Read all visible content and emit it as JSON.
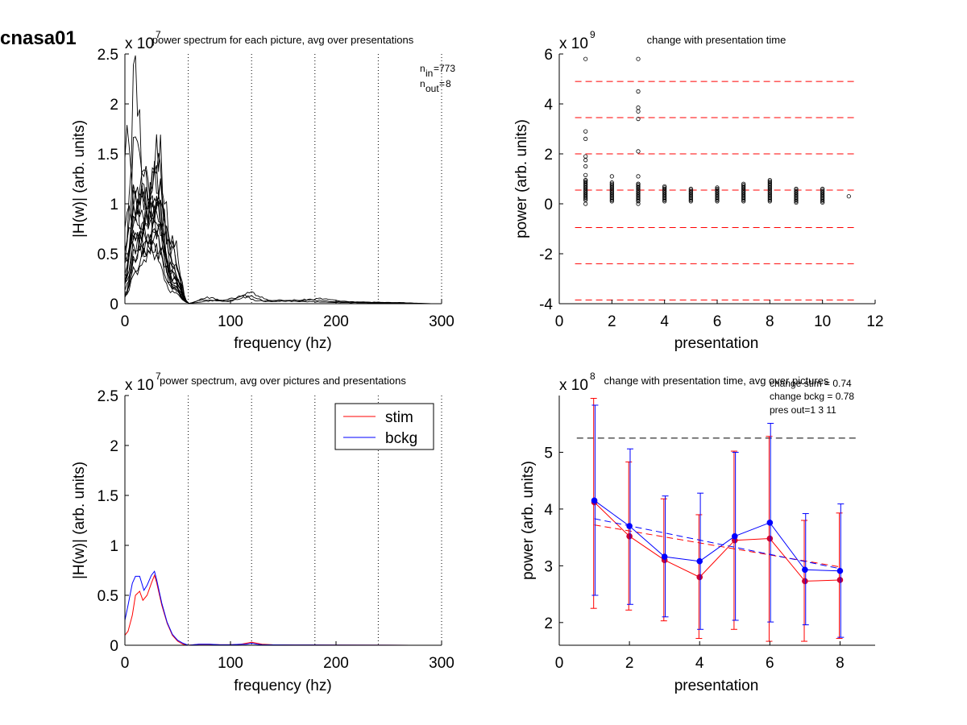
{
  "figure": {
    "label": "cnasa01"
  },
  "chart_data": [
    {
      "id": "p1",
      "type": "line",
      "title": "power spectrum for each picture, avg over presentations",
      "xlabel": "frequency (hz)",
      "ylabel": "|H(w)| (arb. units)",
      "xlim": [
        0,
        300
      ],
      "ylim": [
        0,
        25000000
      ],
      "exponent": "7",
      "xticks": [
        "0",
        "100",
        "200",
        "300"
      ],
      "yticks": [
        "0",
        "0.5",
        "1",
        "1.5",
        "2",
        "2.5"
      ],
      "vlines": [
        60,
        120,
        180,
        240,
        300
      ],
      "annotations": {
        "n_in": "773",
        "n_out": "8"
      },
      "traces": [
        {
          "peaks": [
            [
              0,
              17.6
            ],
            [
              10,
              7.8
            ],
            [
              20,
              5.5
            ],
            [
              30,
              6.4
            ],
            [
              45,
              1.8
            ],
            [
              60,
              0.1
            ]
          ]
        },
        {
          "peaks": [
            [
              0,
              4.8
            ],
            [
              10,
              22.6
            ],
            [
              20,
              8.9
            ],
            [
              30,
              9.8
            ],
            [
              45,
              2.5
            ],
            [
              60,
              0.1
            ]
          ]
        },
        {
          "peaks": [
            [
              0,
              6.4
            ],
            [
              10,
              15.5
            ],
            [
              20,
              11.7
            ],
            [
              30,
              7.3
            ],
            [
              45,
              1.7
            ],
            [
              60,
              0.1
            ]
          ]
        },
        {
          "peaks": [
            [
              0,
              8.5
            ],
            [
              10,
              10.2
            ],
            [
              20,
              12.3
            ],
            [
              30,
              11.9
            ],
            [
              45,
              3.8
            ],
            [
              60,
              0.1
            ]
          ]
        },
        {
          "peaks": [
            [
              0,
              2.3
            ],
            [
              10,
              4.1
            ],
            [
              20,
              8.3
            ],
            [
              30,
              16.0
            ],
            [
              45,
              6.6
            ],
            [
              60,
              0.1
            ]
          ]
        },
        {
          "peaks": [
            [
              0,
              1.4
            ],
            [
              10,
              5.2
            ],
            [
              20,
              9.2
            ],
            [
              30,
              13.7
            ],
            [
              45,
              3.2
            ],
            [
              60,
              0.1
            ]
          ]
        },
        {
          "peaks": [
            [
              0,
              3.1
            ],
            [
              10,
              8.4
            ],
            [
              20,
              10.9
            ],
            [
              30,
              7.6
            ],
            [
              45,
              2.9
            ],
            [
              60,
              0.1
            ]
          ]
        },
        {
          "peaks": [
            [
              0,
              0.8
            ],
            [
              10,
              6.7
            ],
            [
              20,
              7.4
            ],
            [
              30,
              9.9
            ],
            [
              45,
              5.4
            ],
            [
              60,
              0.1
            ]
          ]
        },
        {
          "peaks": [
            [
              0,
              5.2
            ],
            [
              10,
              9.3
            ],
            [
              20,
              6.1
            ],
            [
              30,
              8.2
            ],
            [
              45,
              2.2
            ],
            [
              60,
              0.1
            ]
          ]
        },
        {
          "peaks": [
            [
              0,
              2.0
            ],
            [
              10,
              11.8
            ],
            [
              20,
              9.6
            ],
            [
              30,
              12.6
            ],
            [
              45,
              4.5
            ],
            [
              60,
              0.1
            ]
          ]
        },
        {
          "peaks": [
            [
              0,
              1.1
            ],
            [
              10,
              3.6
            ],
            [
              20,
              6.3
            ],
            [
              30,
              5.4
            ],
            [
              45,
              1.5
            ],
            [
              60,
              0.1
            ]
          ]
        },
        {
          "peaks": [
            [
              0,
              3.8
            ],
            [
              10,
              7.1
            ],
            [
              20,
              4.8
            ],
            [
              30,
              6.9
            ],
            [
              45,
              3.6
            ],
            [
              60,
              0.1
            ]
          ]
        },
        {
          "peaks": [
            [
              0,
              0.6
            ],
            [
              10,
              4.8
            ],
            [
              20,
              8.8
            ],
            [
              30,
              10.5
            ],
            [
              45,
              2.1
            ],
            [
              60,
              0.1
            ]
          ]
        },
        {
          "peaks": [
            [
              0,
              2.7
            ],
            [
              10,
              5.9
            ],
            [
              20,
              7.0
            ],
            [
              30,
              4.3
            ],
            [
              45,
              1.2
            ],
            [
              60,
              0.1
            ]
          ]
        },
        {
          "peaks": [
            [
              0,
              1.7
            ],
            [
              10,
              9.7
            ],
            [
              20,
              10.1
            ],
            [
              30,
              8.8
            ],
            [
              45,
              3.0
            ],
            [
              60,
              0.1
            ]
          ]
        },
        {
          "peaks": [
            [
              0,
              4.2
            ],
            [
              10,
              6.2
            ],
            [
              20,
              5.2
            ],
            [
              30,
              11.2
            ],
            [
              45,
              4.9
            ],
            [
              60,
              0.1
            ]
          ]
        },
        {
          "peaks": [
            [
              0,
              0.9
            ],
            [
              10,
              2.9
            ],
            [
              20,
              4.6
            ],
            [
              30,
              6.1
            ],
            [
              45,
              2.6
            ],
            [
              60,
              0.1
            ]
          ]
        },
        {
          "peaks": [
            [
              0,
              2.5
            ],
            [
              10,
              8.0
            ],
            [
              20,
              9.0
            ],
            [
              30,
              9.4
            ],
            [
              45,
              1.9
            ],
            [
              60,
              0.1
            ]
          ]
        },
        {
          "peaks": [
            [
              60,
              0.05
            ],
            [
              75,
              0.4
            ],
            [
              100,
              0.2
            ],
            [
              110,
              0.9
            ],
            [
              125,
              0.3
            ],
            [
              160,
              0.25
            ],
            [
              185,
              0.5
            ],
            [
              220,
              0.15
            ],
            [
              240,
              0.1
            ],
            [
              300,
              0.0
            ]
          ]
        },
        {
          "peaks": [
            [
              60,
              0.05
            ],
            [
              80,
              0.6
            ],
            [
              95,
              0.3
            ],
            [
              120,
              0.7
            ],
            [
              135,
              0.2
            ],
            [
              170,
              0.4
            ],
            [
              200,
              0.2
            ],
            [
              240,
              0.15
            ],
            [
              300,
              0.0
            ]
          ]
        },
        {
          "peaks": [
            [
              60,
              0.05
            ],
            [
              85,
              0.3
            ],
            [
              105,
              0.5
            ],
            [
              118,
              1.1
            ],
            [
              140,
              0.35
            ],
            [
              175,
              0.2
            ],
            [
              210,
              0.1
            ],
            [
              300,
              0.0
            ]
          ]
        }
      ]
    },
    {
      "id": "p2",
      "type": "scatter",
      "title": "change with presentation time",
      "xlabel": "presentation",
      "ylabel": "power (arb. units)",
      "xlim": [
        0,
        12
      ],
      "ylim": [
        -4000000000,
        6000000000
      ],
      "exponent": "9",
      "xticks": [
        "0",
        "2",
        "4",
        "6",
        "8",
        "10",
        "12"
      ],
      "yticks": [
        "-4",
        "-2",
        "0",
        "2",
        "4",
        "6"
      ],
      "hlines": [
        4.9,
        3.45,
        2.0,
        0.55,
        -0.95,
        -2.4,
        -3.85
      ],
      "outliers": [
        [
          1,
          5.8
        ],
        [
          1,
          2.9
        ],
        [
          1,
          2.6
        ],
        [
          1,
          1.9
        ],
        [
          1,
          1.75
        ],
        [
          1,
          1.5
        ],
        [
          1,
          1.15
        ],
        [
          1,
          0.95
        ],
        [
          2,
          1.1
        ],
        [
          3,
          5.8
        ],
        [
          3,
          4.5
        ],
        [
          3,
          3.85
        ],
        [
          3,
          3.7
        ],
        [
          3,
          3.4
        ],
        [
          3,
          2.1
        ],
        [
          3,
          1.1
        ],
        [
          3,
          0.8
        ],
        [
          11,
          0.3
        ],
        [
          1,
          0.0
        ],
        [
          3,
          0.0
        ]
      ],
      "clusters": [
        [
          1,
          0.15,
          0.95
        ],
        [
          2,
          0.1,
          0.85
        ],
        [
          3,
          0.1,
          0.8
        ],
        [
          4,
          0.1,
          0.7
        ],
        [
          5,
          0.1,
          0.6
        ],
        [
          6,
          0.1,
          0.65
        ],
        [
          7,
          0.1,
          0.8
        ],
        [
          8,
          0.1,
          0.95
        ],
        [
          9,
          0.05,
          0.6
        ],
        [
          10,
          0.05,
          0.6
        ]
      ]
    },
    {
      "id": "p3",
      "type": "line",
      "title": "power spectrum, avg over pictures and presentations",
      "xlabel": "frequency (hz)",
      "ylabel": "|H(w)| (arb. units)",
      "xlim": [
        0,
        300
      ],
      "ylim": [
        0,
        25000000
      ],
      "exponent": "7",
      "xticks": [
        "0",
        "100",
        "200",
        "300"
      ],
      "yticks": [
        "0",
        "0.5",
        "1",
        "1.5",
        "2",
        "2.5"
      ],
      "vlines": [
        60,
        120,
        180,
        240,
        300
      ],
      "legend": "top-right",
      "series": [
        {
          "name": "stim",
          "color": "#ff0000",
          "x": [
            0,
            3,
            7,
            10,
            14,
            17,
            21,
            25,
            28,
            30,
            35,
            40,
            45,
            50,
            55,
            60,
            70,
            80,
            90,
            100,
            110,
            115,
            120,
            125,
            130,
            140,
            160,
            200,
            250,
            300
          ],
          "y": [
            0.1,
            0.14,
            0.3,
            0.5,
            0.54,
            0.45,
            0.5,
            0.62,
            0.7,
            0.63,
            0.4,
            0.22,
            0.1,
            0.04,
            0.01,
            0.0,
            0.01,
            0.01,
            0.005,
            0.005,
            0.01,
            0.02,
            0.03,
            0.02,
            0.01,
            0.005,
            0.003,
            0.002,
            0.001,
            0.0
          ]
        },
        {
          "name": "bckg",
          "color": "#0000ff",
          "x": [
            0,
            3,
            7,
            10,
            14,
            18,
            21,
            25,
            28,
            30,
            35,
            40,
            45,
            50,
            55,
            60,
            70,
            80,
            90,
            100,
            110,
            115,
            120,
            125,
            130,
            140,
            160,
            200,
            250,
            300
          ],
          "y": [
            0.25,
            0.4,
            0.62,
            0.69,
            0.69,
            0.55,
            0.6,
            0.7,
            0.74,
            0.66,
            0.42,
            0.23,
            0.11,
            0.05,
            0.02,
            0.0,
            0.01,
            0.01,
            0.005,
            0.005,
            0.01,
            0.01,
            0.02,
            0.01,
            0.005,
            0.004,
            0.003,
            0.002,
            0.001,
            0.0
          ]
        }
      ]
    },
    {
      "id": "p4",
      "type": "line",
      "title": "change with presentation time, avg over pictures",
      "xlabel": "presentation",
      "ylabel": "power (arb. units)",
      "xlim": [
        0,
        9
      ],
      "ylim": [
        160000000,
        600000000
      ],
      "exponent": "8",
      "xticks": [
        "0",
        "2",
        "4",
        "6",
        "8"
      ],
      "yticks": [
        "2",
        "3",
        "4",
        "5"
      ],
      "hline": 5.25,
      "annotations": [
        "change stim = 0.74",
        "change bckg = 0.78",
        "pres out=1 3 11"
      ],
      "series": [
        {
          "name": "stim",
          "color": "#ff0000",
          "marker": "#cc0033",
          "x": [
            1,
            2,
            3,
            4,
            5,
            6,
            7,
            8
          ],
          "y": [
            4.12,
            3.52,
            3.1,
            2.8,
            3.45,
            3.48,
            2.73,
            2.75
          ],
          "err_lo": [
            2.25,
            2.22,
            2.03,
            1.72,
            1.88,
            1.67,
            1.67,
            1.72
          ],
          "err_hi": [
            5.95,
            4.83,
            4.18,
            3.9,
            5.02,
            5.28,
            3.8,
            3.93
          ],
          "trend": [
            3.72,
            2.98
          ]
        },
        {
          "name": "bckg",
          "color": "#0000ff",
          "marker": "#0000ff",
          "x": [
            1,
            2,
            3,
            4,
            5,
            6,
            7,
            8
          ],
          "y": [
            4.15,
            3.7,
            3.16,
            3.08,
            3.52,
            3.76,
            2.93,
            2.91
          ],
          "err_lo": [
            2.48,
            2.32,
            2.1,
            1.88,
            2.04,
            2.01,
            1.96,
            1.74
          ],
          "err_hi": [
            5.83,
            5.06,
            4.23,
            4.28,
            5.0,
            5.51,
            3.92,
            4.09
          ],
          "trend": [
            3.83,
            2.95
          ]
        }
      ]
    }
  ]
}
